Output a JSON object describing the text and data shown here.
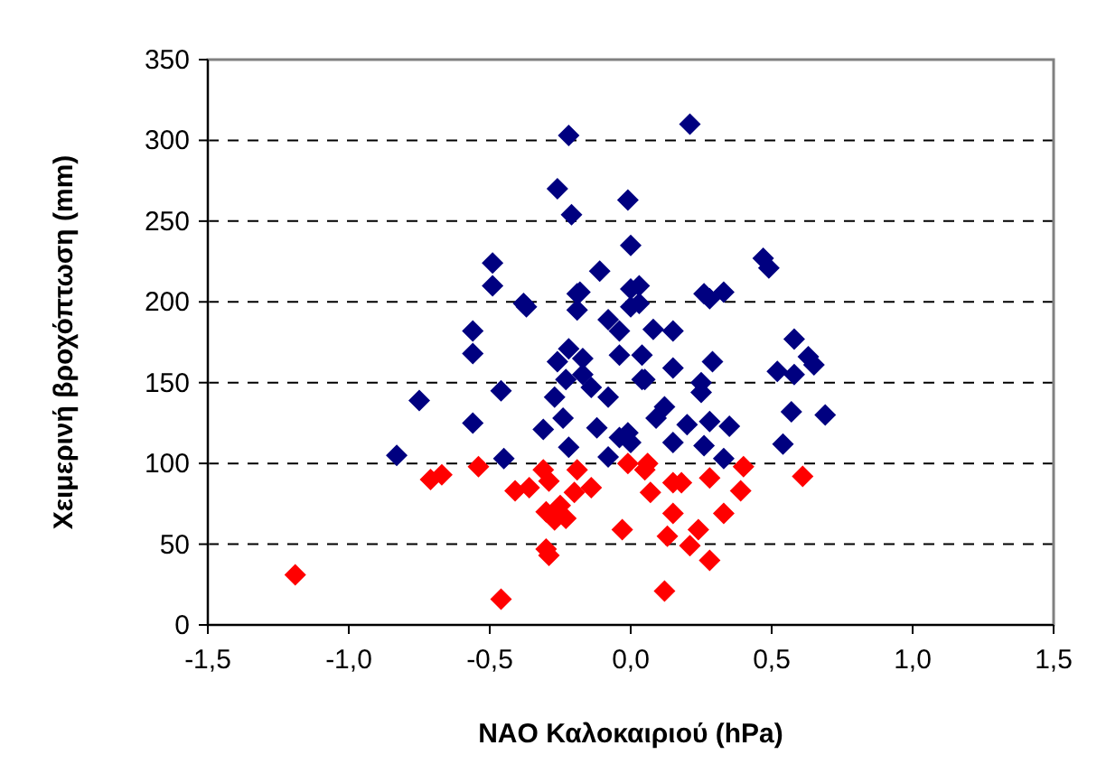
{
  "chart_data": {
    "type": "scatter",
    "xlabel": "NAO Καλοκαιριού (hPa)",
    "ylabel": "Χειμερινή βροχόπτωση (mm)",
    "xlim": [
      -1.5,
      1.5
    ],
    "ylim": [
      0,
      350
    ],
    "xticks": [
      {
        "value": -1.5,
        "label": "-1,5"
      },
      {
        "value": -1,
        "label": "-1,0"
      },
      {
        "value": -0.5,
        "label": "-0,5"
      },
      {
        "value": 0,
        "label": "0,0"
      },
      {
        "value": 0.5,
        "label": "0,5"
      },
      {
        "value": 1,
        "label": "1,0"
      },
      {
        "value": 1.5,
        "label": "1,5"
      }
    ],
    "yticks": [
      0,
      50,
      100,
      150,
      200,
      250,
      300,
      350
    ],
    "grid": "y",
    "marker": "diamond",
    "series": [
      {
        "color": "#000080",
        "x": [
          -0.83,
          -0.75,
          -0.56,
          -0.56,
          -0.56,
          -0.46,
          -0.45,
          -0.49,
          -0.49,
          -0.38,
          -0.37,
          -0.22,
          0.21,
          -0.26,
          -0.21,
          -0.01,
          0.0,
          -0.11,
          -0.18,
          0.0,
          0.03,
          0.26,
          0.33,
          0.47,
          0.49,
          0.58,
          0.63,
          0.52,
          0.58,
          0.65,
          0.57,
          0.69,
          0.54,
          0.29,
          0.15,
          0.25,
          0.25,
          0.04,
          -0.04,
          0.08,
          0.15,
          0.28,
          0.12,
          0.09,
          0.2,
          0.28,
          0.35,
          -0.01,
          0.15,
          0.26,
          0.33,
          0.03,
          -0.19,
          -0.19,
          -0.08,
          0.0,
          -0.22,
          -0.26,
          -0.17,
          -0.04,
          0.04,
          -0.23,
          -0.27,
          -0.14,
          -0.08,
          0.05,
          -0.31,
          -0.24,
          -0.12,
          -0.04,
          0.0,
          -0.22,
          -0.08,
          -0.17
        ],
        "values": [
          105,
          139,
          182,
          168,
          125,
          145,
          103,
          224,
          210,
          199,
          197,
          303,
          310,
          270,
          254,
          263,
          235,
          219,
          206,
          208,
          210,
          205,
          206,
          227,
          221,
          177,
          166,
          157,
          155,
          161,
          132,
          130,
          112,
          163,
          159,
          150,
          144,
          152,
          182,
          183,
          182,
          202,
          135,
          128,
          124,
          126,
          123,
          119,
          113,
          111,
          103,
          199,
          205,
          195,
          189,
          197,
          171,
          163,
          165,
          167,
          167,
          152,
          141,
          147,
          141,
          152,
          121,
          128,
          122,
          116,
          113,
          110,
          104,
          155
        ]
      },
      {
        "color": "#ff0000",
        "x": [
          -1.19,
          -0.71,
          -0.67,
          -0.54,
          -0.46,
          -0.3,
          -0.41,
          -0.36,
          -0.31,
          -0.29,
          -0.3,
          -0.25,
          -0.23,
          -0.19,
          -0.14,
          -0.2,
          -0.27,
          -0.03,
          -0.01,
          0.05,
          0.06,
          0.07,
          0.15,
          0.18,
          0.28,
          0.4,
          0.39,
          0.33,
          0.15,
          0.13,
          0.21,
          0.24,
          0.28,
          0.12,
          0.61,
          -0.29
        ],
        "values": [
          31,
          90,
          93,
          98,
          16,
          47,
          83,
          85,
          96,
          89,
          70,
          74,
          66,
          96,
          85,
          82,
          65,
          59,
          100,
          96,
          100,
          82,
          88,
          88,
          91,
          98,
          83,
          69,
          69,
          55,
          49,
          59,
          40,
          21,
          92,
          43
        ]
      }
    ]
  }
}
